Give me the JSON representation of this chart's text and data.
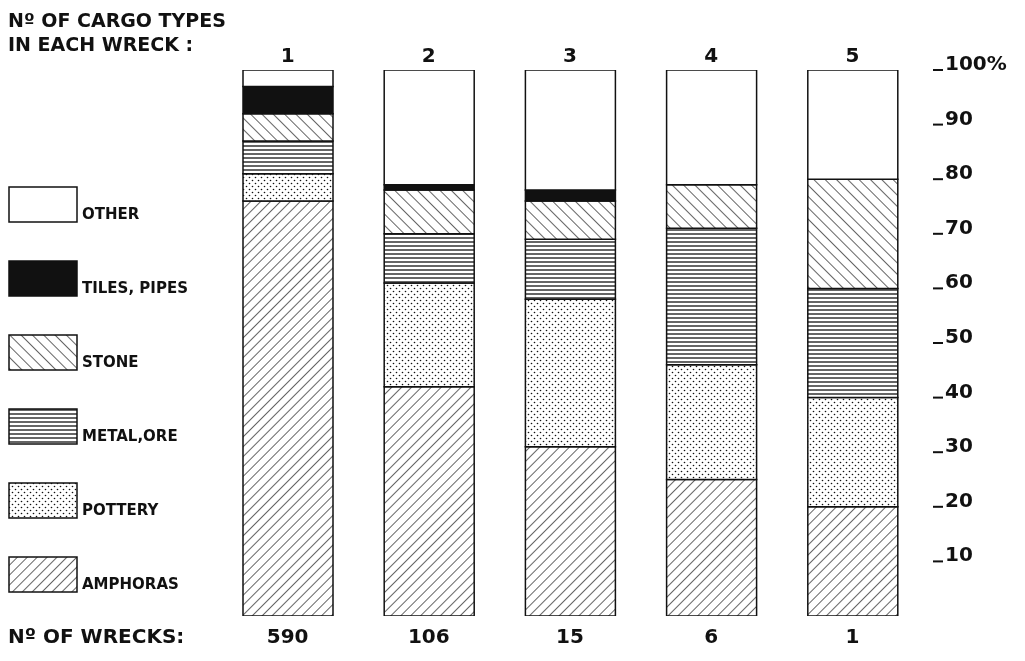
{
  "chart_data": {
    "type": "bar",
    "stacked": true,
    "xlabel": "Nº OF CARGO TYPES IN EACH WRECK :",
    "categories": [
      "1",
      "2",
      "3",
      "4",
      "5"
    ],
    "series": [
      {
        "name": "AMPHORAS",
        "color": "#111111",
        "values": [
          76,
          42,
          31,
          25,
          20
        ]
      },
      {
        "name": "POTTERY",
        "color": "#111111",
        "values": [
          5,
          19,
          27,
          21,
          20
        ]
      },
      {
        "name": "METAL,ORE",
        "color": "#111111",
        "values": [
          6,
          9,
          11,
          25,
          20
        ]
      },
      {
        "name": "STONE",
        "color": "#111111",
        "values": [
          5,
          8,
          7,
          8,
          20
        ]
      },
      {
        "name": "TILES, PIPES",
        "color": "#111111",
        "values": [
          5,
          1,
          2,
          0,
          0
        ]
      },
      {
        "name": "OTHER",
        "color": "#111111",
        "values": [
          3,
          21,
          22,
          21,
          20
        ]
      }
    ],
    "ylim": [
      0,
      100
    ],
    "yticks": [
      10,
      20,
      30,
      40,
      50,
      60,
      70,
      80,
      90,
      {
        "value": 100,
        "label": "100%"
      }
    ],
    "legend": "left",
    "grid": false,
    "annotations": [
      "Nº OF WRECKS:",
      "590",
      "106",
      "15",
      "6",
      "1"
    ]
  }
}
